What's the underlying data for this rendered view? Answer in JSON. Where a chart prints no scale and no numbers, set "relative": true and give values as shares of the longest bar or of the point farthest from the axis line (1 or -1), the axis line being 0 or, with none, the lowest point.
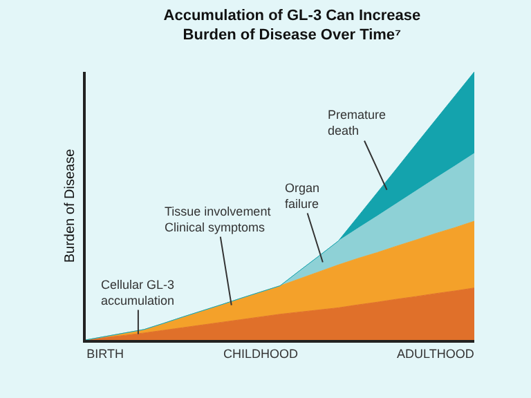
{
  "chart_data": {
    "type": "area",
    "stacked": true,
    "relative": true,
    "title": "Accumulation of GL-3 Can Increase\nBurden of Disease Over Time⁷",
    "ylabel": "Burden of Disease",
    "categories": [
      null,
      "BIRTH",
      null,
      null,
      null,
      null,
      null,
      null,
      null,
      "CHILDHOOD",
      null,
      null,
      null,
      null,
      null,
      null,
      null,
      null,
      "ADULTHOOD",
      null,
      null
    ],
    "series": [
      {
        "color": "#e0702a",
        "values": [
          0,
          0.009,
          0.017,
          0.026,
          0.036,
          0.046,
          0.056,
          0.066,
          0.076,
          0.086,
          0.096,
          0.104,
          0.112,
          0.12,
          0.131,
          0.141,
          0.152,
          0.162,
          0.173,
          0.183,
          0.194
        ]
      },
      {
        "color": "#f4a12a",
        "values": [
          0,
          0.004,
          0.009,
          0.013,
          0.026,
          0.04,
          0.053,
          0.066,
          0.08,
          0.093,
          0.106,
          0.124,
          0.142,
          0.16,
          0.173,
          0.185,
          0.198,
          0.211,
          0.224,
          0.236,
          0.249
        ]
      },
      {
        "color": "#8ed1d6",
        "values": [
          0,
          0,
          0,
          0,
          0,
          0,
          0,
          0,
          0,
          0,
          0,
          0.03,
          0.059,
          0.089,
          0.112,
          0.136,
          0.159,
          0.183,
          0.206,
          0.23,
          0.253
        ]
      },
      {
        "color": "#14a3ad",
        "values": [
          0,
          0,
          0,
          0,
          0,
          0,
          0,
          0,
          0,
          0,
          0,
          0,
          0,
          0,
          0.043,
          0.087,
          0.13,
          0.174,
          0.217,
          0.261,
          0.304
        ]
      }
    ],
    "annotations": [
      "Cellular GL-3\naccumulation",
      "Tissue involvement\nClinical symptoms",
      "Organ\nfailure",
      "Premature\ndeath"
    ],
    "grid": false
  }
}
